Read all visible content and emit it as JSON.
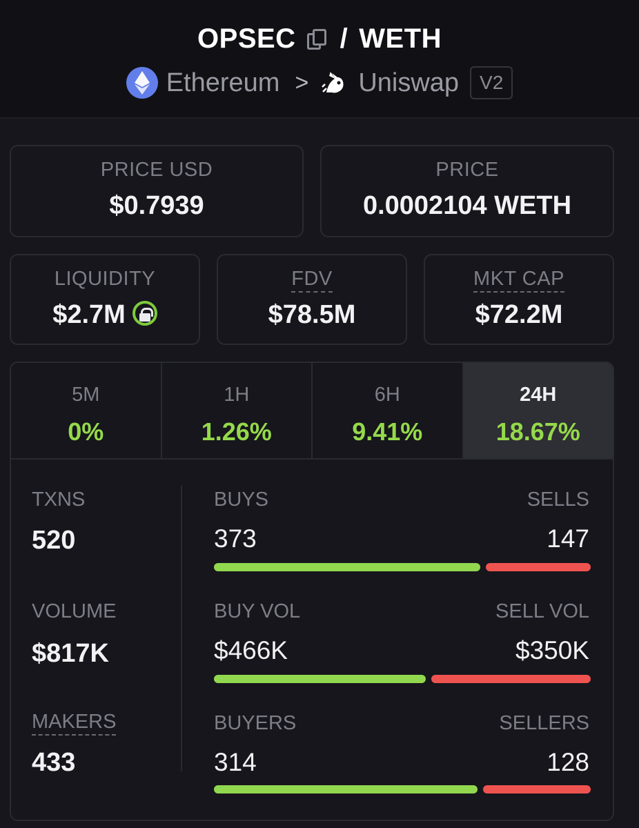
{
  "header": {
    "base": "OPSEC",
    "separator": "/",
    "quote": "WETH",
    "chain": "Ethereum",
    "chevron": ">",
    "dex": "Uniswap",
    "version": "V2"
  },
  "price_usd": {
    "label": "PRICE USD",
    "value": "$0.7939"
  },
  "price": {
    "label": "PRICE",
    "value": "0.0002104 WETH"
  },
  "liquidity": {
    "label": "LIQUIDITY",
    "value": "$2.7M"
  },
  "fdv": {
    "label": "FDV",
    "value": "$78.5M"
  },
  "mkt_cap": {
    "label": "MKT CAP",
    "value": "$72.2M"
  },
  "tabs": [
    {
      "label": "5M",
      "value": "0%"
    },
    {
      "label": "1H",
      "value": "1.26%"
    },
    {
      "label": "6H",
      "value": "9.41%"
    },
    {
      "label": "24H",
      "value": "18.67%"
    }
  ],
  "stats": {
    "txns": {
      "label": "TXNS",
      "value": "520"
    },
    "volume": {
      "label": "VOLUME",
      "value": "$817K"
    },
    "makers": {
      "label": "MAKERS",
      "value": "433"
    },
    "buys": {
      "label": "BUYS",
      "value": "373",
      "buy_share": 0.717
    },
    "sells": {
      "label": "SELLS",
      "value": "147"
    },
    "buy_vol": {
      "label": "BUY VOL",
      "value": "$466K",
      "buy_share": 0.571
    },
    "sell_vol": {
      "label": "SELL VOL",
      "value": "$350K"
    },
    "buyers": {
      "label": "BUYERS",
      "value": "314",
      "buy_share": 0.71
    },
    "sellers": {
      "label": "SELLERS",
      "value": "128"
    }
  },
  "colors": {
    "positive": "#95d94a",
    "buy_bar": "#91d84f",
    "sell_bar": "#ef5350",
    "eth": "#627eea"
  }
}
